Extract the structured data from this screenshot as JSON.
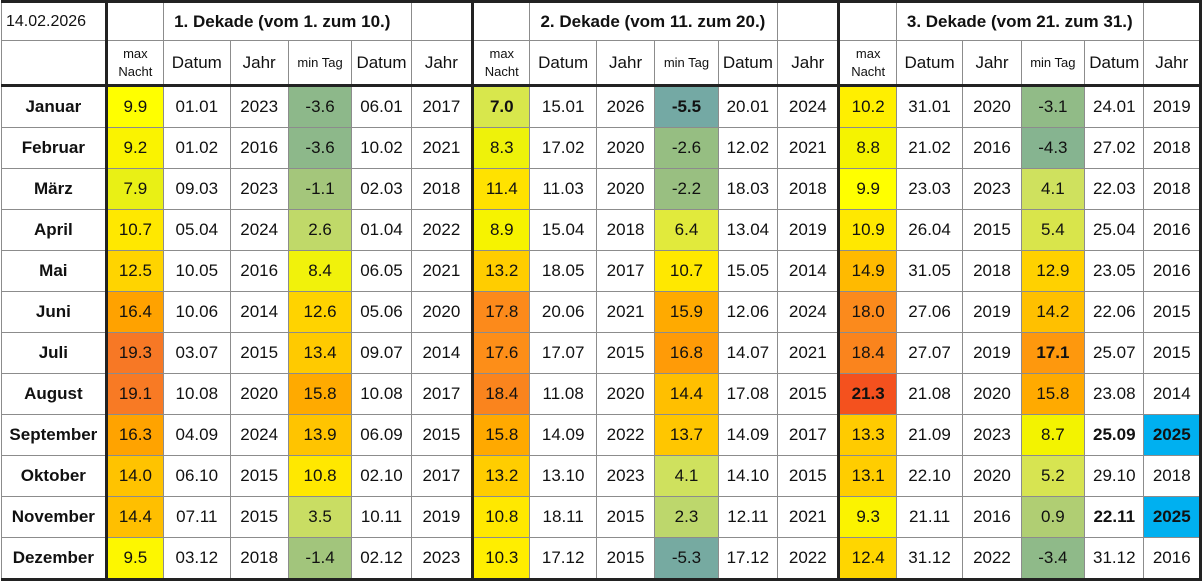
{
  "date_label": "14.02.2026",
  "dekaden": [
    "1. Dekade (vom 1. zum 10.)",
    "2. Dekade (vom 11. zum 20.)",
    "3. Dekade (vom 21. zum 31.)"
  ],
  "subheaders": {
    "max_nacht": "max Nacht",
    "datum": "Datum",
    "jahr": "Jahr",
    "min_tag": "min Tag"
  },
  "rows": [
    {
      "month": "Januar",
      "d": [
        {
          "max": "9.9",
          "maxColor": "#ffff00",
          "maxD": "01.01",
          "maxJ": "2023",
          "min": "-3.6",
          "minColor": "#8db88a",
          "minD": "06.01",
          "minJ": "2017"
        },
        {
          "max": "7.0",
          "maxColor": "#d8e74c",
          "maxBold": true,
          "maxD": "15.01",
          "maxJ": "2026",
          "min": "-5.5",
          "minColor": "#74a9a4",
          "minBold": true,
          "minD": "20.01",
          "minJ": "2024"
        },
        {
          "max": "10.2",
          "maxColor": "#ffef00",
          "maxD": "31.01",
          "maxJ": "2020",
          "min": "-3.1",
          "minColor": "#91bb87",
          "minD": "24.01",
          "minJ": "2019"
        }
      ]
    },
    {
      "month": "Februar",
      "d": [
        {
          "max": "9.2",
          "maxColor": "#faf300",
          "maxD": "01.02",
          "maxJ": "2016",
          "min": "-3.6",
          "minColor": "#8db88a",
          "minD": "10.02",
          "minJ": "2021"
        },
        {
          "max": "8.3",
          "maxColor": "#eef20a",
          "maxD": "17.02",
          "maxJ": "2020",
          "min": "-2.6",
          "minColor": "#96be82",
          "minD": "12.02",
          "minJ": "2021"
        },
        {
          "max": "8.8",
          "maxColor": "#f5f300",
          "maxD": "21.02",
          "maxJ": "2016",
          "min": "-4.3",
          "minColor": "#86b490",
          "minD": "27.02",
          "minJ": "2018"
        }
      ]
    },
    {
      "month": "März",
      "d": [
        {
          "max": "7.9",
          "maxColor": "#e9f015",
          "maxD": "09.03",
          "maxJ": "2023",
          "min": "-1.1",
          "minColor": "#a4c67b",
          "minD": "02.03",
          "minJ": "2018"
        },
        {
          "max": "11.4",
          "maxColor": "#ffe200",
          "maxD": "11.03",
          "maxJ": "2020",
          "min": "-2.2",
          "minColor": "#99bf81",
          "minD": "18.03",
          "minJ": "2018"
        },
        {
          "max": "9.9",
          "maxColor": "#ffff00",
          "maxD": "23.03",
          "maxJ": "2023",
          "min": "4.1",
          "minColor": "#cfe15e",
          "minD": "22.03",
          "minJ": "2018"
        }
      ]
    },
    {
      "month": "April",
      "d": [
        {
          "max": "10.7",
          "maxColor": "#ffe800",
          "maxD": "05.04",
          "maxJ": "2024",
          "min": "2.6",
          "minColor": "#c0d969",
          "minD": "01.04",
          "minJ": "2022"
        },
        {
          "max": "8.9",
          "maxColor": "#f6f300",
          "maxD": "15.04",
          "maxJ": "2018",
          "min": "6.4",
          "minColor": "#e1ea3c",
          "minD": "13.04",
          "minJ": "2019"
        },
        {
          "max": "10.9",
          "maxColor": "#ffe800",
          "maxD": "26.04",
          "maxJ": "2015",
          "min": "5.4",
          "minColor": "#d9e54b",
          "minD": "25.04",
          "minJ": "2016"
        }
      ]
    },
    {
      "month": "Mai",
      "d": [
        {
          "max": "12.5",
          "maxColor": "#ffd400",
          "maxD": "10.05",
          "maxJ": "2016",
          "min": "8.4",
          "minColor": "#f1f20b",
          "minD": "06.05",
          "minJ": "2021"
        },
        {
          "max": "13.2",
          "maxColor": "#ffcd00",
          "maxD": "18.05",
          "maxJ": "2017",
          "min": "10.7",
          "minColor": "#ffe800",
          "minD": "15.05",
          "minJ": "2014"
        },
        {
          "max": "14.9",
          "maxColor": "#ffba00",
          "maxD": "31.05",
          "maxJ": "2018",
          "min": "12.9",
          "minColor": "#ffd100",
          "minD": "23.05",
          "minJ": "2016"
        }
      ]
    },
    {
      "month": "Juni",
      "d": [
        {
          "max": "16.4",
          "maxColor": "#ffa200",
          "maxD": "10.06",
          "maxJ": "2014",
          "min": "12.6",
          "minColor": "#ffd300",
          "minD": "05.06",
          "minJ": "2020"
        },
        {
          "max": "17.8",
          "maxColor": "#fc8a1b",
          "maxD": "20.06",
          "maxJ": "2021",
          "min": "15.9",
          "minColor": "#ffaa00",
          "minD": "12.06",
          "minJ": "2024"
        },
        {
          "max": "18.0",
          "maxColor": "#fb8a1c",
          "maxD": "27.06",
          "maxJ": "2019",
          "min": "14.2",
          "minColor": "#ffc000",
          "minD": "22.06",
          "minJ": "2015"
        }
      ]
    },
    {
      "month": "Juli",
      "d": [
        {
          "max": "19.3",
          "maxColor": "#f77825",
          "maxD": "03.07",
          "maxJ": "2015",
          "min": "13.4",
          "minColor": "#ffca00",
          "minD": "09.07",
          "minJ": "2014"
        },
        {
          "max": "17.6",
          "maxColor": "#fd8e18",
          "maxD": "17.07",
          "maxJ": "2015",
          "min": "16.8",
          "minColor": "#ff9b07",
          "minD": "14.07",
          "minJ": "2021"
        },
        {
          "max": "18.4",
          "maxColor": "#fa841d",
          "maxD": "27.07",
          "maxJ": "2019",
          "min": "17.1",
          "minColor": "#fe980d",
          "minBold": true,
          "minD": "25.07",
          "minJ": "2015"
        }
      ]
    },
    {
      "month": "August",
      "d": [
        {
          "max": "19.1",
          "maxColor": "#f87a24",
          "maxD": "10.08",
          "maxJ": "2020",
          "min": "15.8",
          "minColor": "#ffaa00",
          "minD": "10.08",
          "minJ": "2017"
        },
        {
          "max": "18.4",
          "maxColor": "#fa841d",
          "maxD": "11.08",
          "maxJ": "2020",
          "min": "14.4",
          "minColor": "#ffbf00",
          "minD": "17.08",
          "minJ": "2015"
        },
        {
          "max": "21.3",
          "maxColor": "#f4511e",
          "maxBold": true,
          "maxD": "21.08",
          "maxJ": "2020",
          "min": "15.8",
          "minColor": "#ffaa00",
          "minD": "23.08",
          "minJ": "2014"
        }
      ]
    },
    {
      "month": "September",
      "d": [
        {
          "max": "16.3",
          "maxColor": "#ffa300",
          "maxD": "04.09",
          "maxJ": "2024",
          "min": "13.9",
          "minColor": "#ffc400",
          "minD": "06.09",
          "minJ": "2015"
        },
        {
          "max": "15.8",
          "maxColor": "#ffa900",
          "maxD": "14.09",
          "maxJ": "2022",
          "min": "13.7",
          "minColor": "#ffc600",
          "minD": "14.09",
          "minJ": "2017"
        },
        {
          "max": "13.3",
          "maxColor": "#ffcb00",
          "maxD": "21.09",
          "maxJ": "2023",
          "min": "8.7",
          "minColor": "#f3f300",
          "minD": "25.09",
          "minDBold": true,
          "minJ": "2025",
          "minJBlue": true
        }
      ]
    },
    {
      "month": "Oktober",
      "d": [
        {
          "max": "14.0",
          "maxColor": "#ffc300",
          "maxD": "06.10",
          "maxJ": "2015",
          "min": "10.8",
          "minColor": "#ffe800",
          "minD": "02.10",
          "minJ": "2017"
        },
        {
          "max": "13.2",
          "maxColor": "#ffcd00",
          "maxD": "13.10",
          "maxJ": "2023",
          "min": "4.1",
          "minColor": "#cfe15e",
          "minD": "14.10",
          "minJ": "2015"
        },
        {
          "max": "13.1",
          "maxColor": "#ffcd00",
          "maxD": "22.10",
          "maxJ": "2020",
          "min": "5.2",
          "minColor": "#d7e451",
          "minD": "29.10",
          "minJ": "2018"
        }
      ]
    },
    {
      "month": "November",
      "d": [
        {
          "max": "14.4",
          "maxColor": "#ffbf00",
          "maxD": "07.11",
          "maxJ": "2015",
          "min": "3.5",
          "minColor": "#c9dd63",
          "minD": "10.11",
          "minJ": "2019"
        },
        {
          "max": "10.8",
          "maxColor": "#ffe800",
          "maxD": "18.11",
          "maxJ": "2015",
          "min": "2.3",
          "minColor": "#bdd76c",
          "minD": "12.11",
          "minJ": "2021"
        },
        {
          "max": "9.3",
          "maxColor": "#fbf300",
          "maxD": "21.11",
          "maxJ": "2016",
          "min": "0.9",
          "minColor": "#b0ce73",
          "minD": "22.11",
          "minDBold": true,
          "minJ": "2025",
          "minJBlue": true
        }
      ]
    },
    {
      "month": "Dezember",
      "d": [
        {
          "max": "9.5",
          "maxColor": "#fdf700",
          "maxD": "03.12",
          "maxJ": "2018",
          "min": "-1.4",
          "minColor": "#a2c57c",
          "minD": "02.12",
          "minJ": "2023"
        },
        {
          "max": "10.3",
          "maxColor": "#ffee00",
          "maxD": "17.12",
          "maxJ": "2015",
          "min": "-5.3",
          "minColor": "#76aaa1",
          "minD": "17.12",
          "minJ": "2022"
        },
        {
          "max": "12.4",
          "maxColor": "#ffd600",
          "maxD": "31.12",
          "maxJ": "2022",
          "min": "-3.4",
          "minColor": "#8fba89",
          "minD": "31.12",
          "minJ": "2016"
        }
      ]
    }
  ]
}
